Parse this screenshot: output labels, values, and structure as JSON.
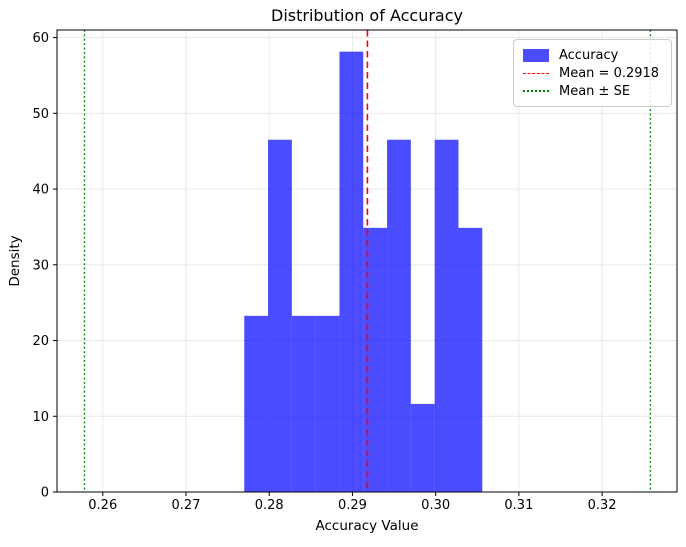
{
  "figure": {
    "title": "Distribution of Accuracy",
    "xlabel": "Accuracy Value",
    "ylabel": "Density"
  },
  "chart_data": {
    "type": "bar",
    "subtype": "histogram",
    "title": "Distribution of Accuracy",
    "xlabel": "Accuracy Value",
    "ylabel": "Density",
    "xlim": [
      0.2545,
      0.329
    ],
    "ylim": [
      0,
      61
    ],
    "grid": true,
    "legend_position": "upper right",
    "x_ticks": {
      "values": [
        0.26,
        0.27,
        0.28,
        0.29,
        0.3,
        0.31,
        0.32
      ],
      "labels": [
        "0.26",
        "0.27",
        "0.28",
        "0.29",
        "0.30",
        "0.31",
        "0.32"
      ]
    },
    "y_ticks": {
      "values": [
        0,
        10,
        20,
        30,
        40,
        50,
        60
      ],
      "labels": [
        "0",
        "10",
        "20",
        "30",
        "40",
        "50",
        "60"
      ]
    },
    "histogram": {
      "label": "Accuracy",
      "n_samples": 30,
      "bin_start": 0.277,
      "bin_width": 0.00286,
      "bin_edges": [
        0.277,
        0.27986,
        0.28272,
        0.28558,
        0.28844,
        0.2913,
        0.29416,
        0.29702,
        0.29988,
        0.30274,
        0.3056
      ],
      "counts": [
        2,
        4,
        2,
        2,
        5,
        3,
        4,
        1,
        4,
        3
      ],
      "densities": [
        23.26,
        46.51,
        23.26,
        23.26,
        58.14,
        34.88,
        46.51,
        11.63,
        46.51,
        34.88
      ],
      "color": "#0000ff",
      "alpha": 0.7
    },
    "mean_line": {
      "value": 0.2918,
      "label": "Mean = 0.2918",
      "color": "#ff0000",
      "linestyle": "dashed"
    },
    "se_lines": {
      "values": [
        0.2578,
        0.3258
      ],
      "se": 0.034,
      "label": "Mean ± SE",
      "color": "#008000",
      "linestyle": "dotted"
    },
    "colors": {
      "background": "#ffffff",
      "spine": "#000000",
      "grid": "#e7e7e7",
      "tick_text": "#000000",
      "legend_border": "#cccccc"
    }
  },
  "legend": {
    "entries": [
      {
        "label": "Accuracy",
        "swatch": "patch",
        "color": "#0000ff"
      },
      {
        "label": "Mean = 0.2918",
        "swatch": "dashed-line",
        "color": "#ff0000"
      },
      {
        "label": "Mean ± SE",
        "swatch": "dotted-line",
        "color": "#008000"
      }
    ]
  }
}
